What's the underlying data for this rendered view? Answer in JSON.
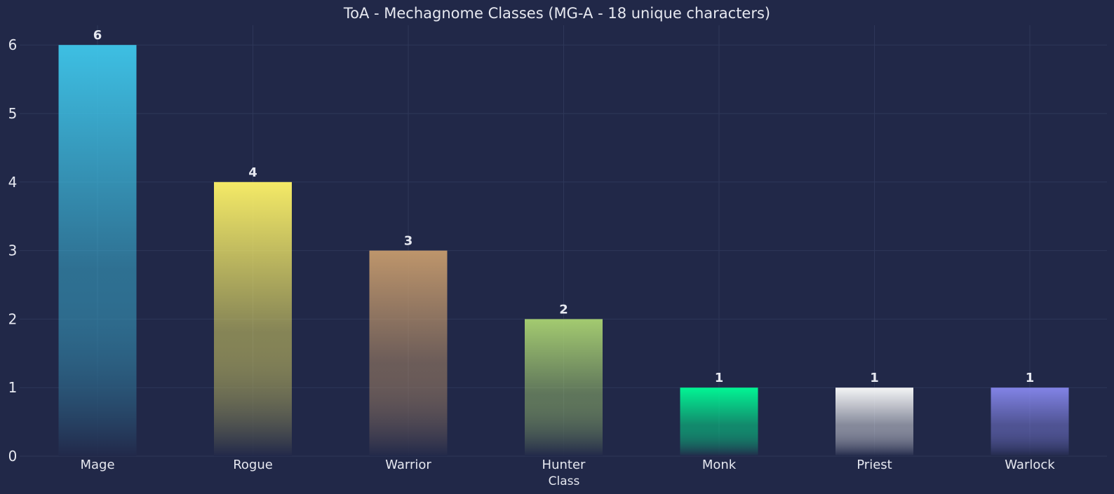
{
  "chart_data": {
    "type": "bar",
    "title": "ToA - Mechagnome Classes (MG-A - 18 unique characters)",
    "xlabel": "Class",
    "ylabel": "",
    "categories": [
      "Mage",
      "Rogue",
      "Warrior",
      "Hunter",
      "Monk",
      "Priest",
      "Warlock"
    ],
    "values": [
      6,
      4,
      3,
      2,
      1,
      1,
      1
    ],
    "ylim": [
      0,
      6.3
    ],
    "yticks": [
      0,
      1,
      2,
      3,
      4,
      5,
      6
    ],
    "grid": true,
    "colors": [
      "#3fc7eb",
      "#fff468",
      "#c69b6d",
      "#aad372",
      "#00ff98",
      "#ffffff",
      "#8788ee"
    ],
    "background": "#212848",
    "bar_fade_color": "#22294a"
  }
}
